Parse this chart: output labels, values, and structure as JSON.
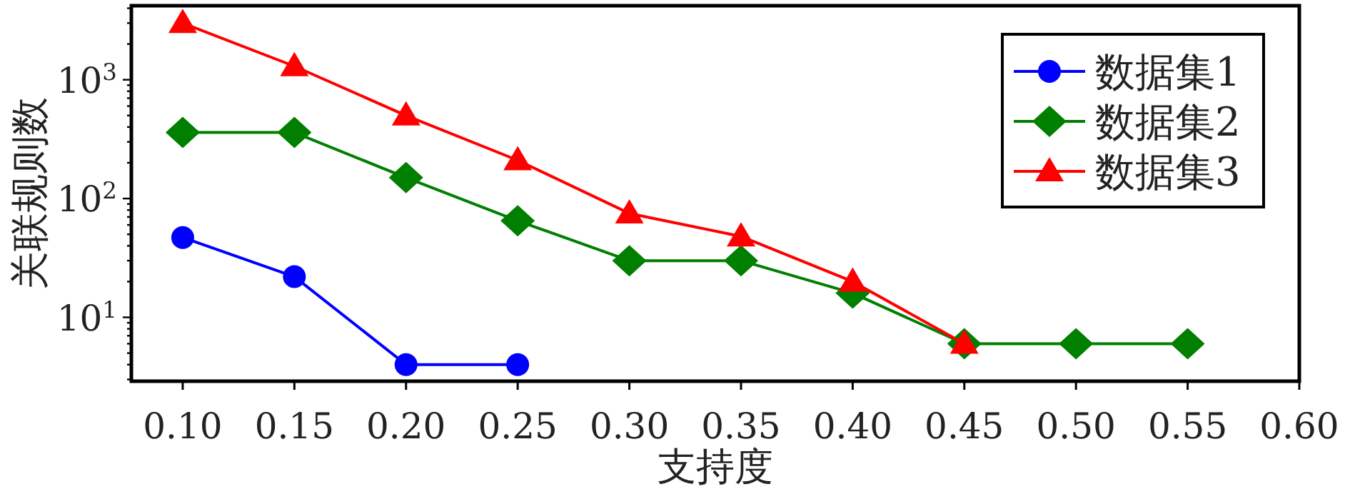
{
  "chart_data": {
    "type": "line",
    "xlabel": "支持度",
    "ylabel": "关联规则数",
    "log": "y",
    "grid": false,
    "legend": "top right",
    "x": [
      0.1,
      0.15,
      0.2,
      0.25,
      0.3,
      0.35,
      0.4,
      0.45,
      0.5,
      0.55
    ],
    "xlim": [
      0.077,
      0.6
    ],
    "xticks": [
      {
        "value": 0.1,
        "label": "0.10"
      },
      {
        "value": 0.15,
        "label": "0.15"
      },
      {
        "value": 0.2,
        "label": "0.20"
      },
      {
        "value": 0.25,
        "label": "0.25"
      },
      {
        "value": 0.3,
        "label": "0.30"
      },
      {
        "value": 0.35,
        "label": "0.35"
      },
      {
        "value": 0.4,
        "label": "0.40"
      },
      {
        "value": 0.45,
        "label": "0.45"
      },
      {
        "value": 0.5,
        "label": "0.50"
      },
      {
        "value": 0.55,
        "label": "0.55"
      },
      {
        "value": 0.6,
        "label": "0.60"
      }
    ],
    "ylim": [
      2.9,
      4200
    ],
    "yticks": [
      {
        "value": 3,
        "label": null
      },
      {
        "value": 4,
        "label": null
      },
      {
        "value": 5,
        "label": null
      },
      {
        "value": 6,
        "label": null
      },
      {
        "value": 7,
        "label": null
      },
      {
        "value": 8,
        "label": null
      },
      {
        "value": 9,
        "label": null
      },
      {
        "value": 10,
        "label": "10$^{1}$"
      },
      {
        "value": 20,
        "label": null
      },
      {
        "value": 30,
        "label": null
      },
      {
        "value": 40,
        "label": null
      },
      {
        "value": 50,
        "label": null
      },
      {
        "value": 60,
        "label": null
      },
      {
        "value": 70,
        "label": null
      },
      {
        "value": 80,
        "label": null
      },
      {
        "value": 90,
        "label": null
      },
      {
        "value": 100,
        "label": "10$^{2}$"
      },
      {
        "value": 200,
        "label": null
      },
      {
        "value": 300,
        "label": null
      },
      {
        "value": 400,
        "label": null
      },
      {
        "value": 500,
        "label": null
      },
      {
        "value": 600,
        "label": null
      },
      {
        "value": 700,
        "label": null
      },
      {
        "value": 800,
        "label": null
      },
      {
        "value": 900,
        "label": null
      },
      {
        "value": 1000,
        "label": "10$^{3}$"
      },
      {
        "value": 2000,
        "label": null
      },
      {
        "value": 3000,
        "label": null
      },
      {
        "value": 4000,
        "label": null
      }
    ],
    "series": [
      {
        "name": "数据集1",
        "color": "#0000ff",
        "marker": "circle",
        "values": [
          47,
          22,
          4,
          4,
          null,
          null,
          null,
          null,
          null,
          null
        ]
      },
      {
        "name": "数据集2",
        "color": "#007f00",
        "marker": "diamond",
        "values": [
          360,
          360,
          150,
          65,
          30,
          30,
          16,
          6,
          6,
          6
        ]
      },
      {
        "name": "数据集3",
        "color": "#ff0000",
        "marker": "triangle",
        "values": [
          3000,
          1300,
          500,
          210,
          75,
          48,
          20,
          6,
          null,
          null
        ]
      }
    ]
  }
}
